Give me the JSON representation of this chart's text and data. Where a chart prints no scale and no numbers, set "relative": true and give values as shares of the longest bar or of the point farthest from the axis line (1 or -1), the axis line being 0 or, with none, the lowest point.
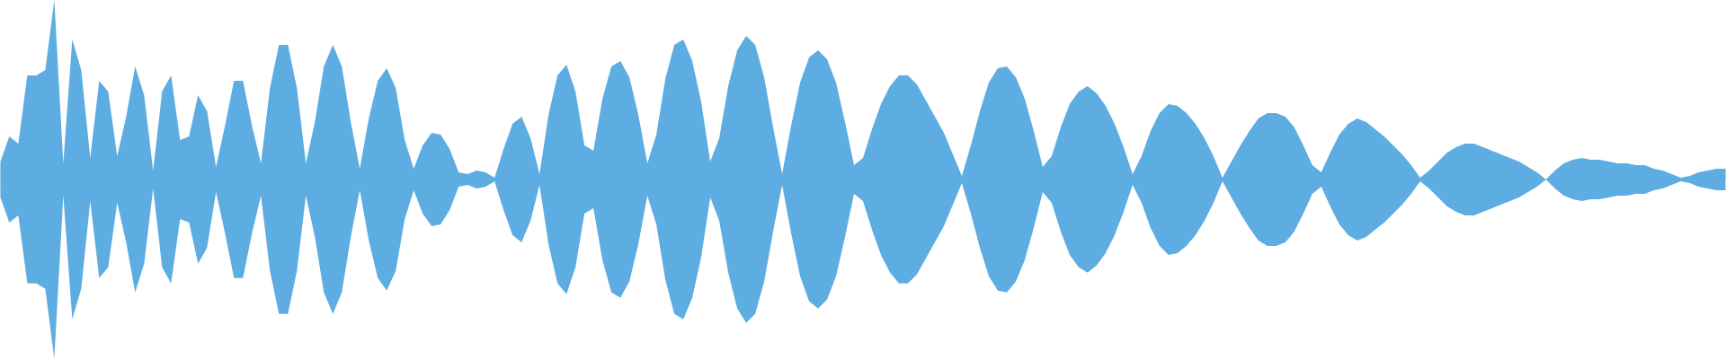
{
  "chart_data": {
    "type": "area",
    "relative": true,
    "ref_lines": [
      {
        "axis": "y",
        "value": 0,
        "color": "#5dade2"
      }
    ],
    "categories": [
      null,
      null,
      null,
      null,
      null,
      null,
      null,
      null,
      null,
      null,
      null,
      null,
      null,
      null,
      null,
      null,
      null,
      null,
      null,
      null,
      null,
      null,
      null,
      null,
      null,
      null,
      null,
      null,
      null,
      null,
      null,
      null,
      null,
      null,
      null,
      null,
      null,
      null,
      null,
      null,
      null,
      null,
      null,
      null,
      null,
      null,
      null,
      null,
      null,
      null,
      null,
      null,
      null,
      null,
      null,
      null,
      null,
      null,
      null,
      null,
      null,
      null,
      null,
      null,
      null,
      null,
      null,
      null,
      null,
      null,
      null,
      null,
      null,
      null,
      null,
      null,
      null,
      null,
      null,
      null,
      null,
      null,
      null,
      null,
      null,
      null,
      null,
      null,
      null,
      null,
      null,
      null,
      null,
      null,
      null,
      null,
      null,
      null,
      null,
      null,
      null,
      null,
      null,
      null,
      null,
      null,
      null,
      null,
      null,
      null,
      null,
      null,
      null,
      null,
      null,
      null,
      null,
      null,
      null,
      null,
      null,
      null,
      null,
      null,
      null,
      null,
      null,
      null,
      null,
      null,
      null,
      null,
      null,
      null,
      null,
      null,
      null,
      null,
      null,
      null,
      null,
      null,
      null,
      null,
      null,
      null,
      null,
      null,
      null,
      null,
      null,
      null,
      null,
      null,
      null,
      null,
      null,
      null,
      null,
      null,
      null,
      null,
      null,
      null,
      null,
      null,
      null,
      null,
      null,
      null,
      null,
      null,
      null,
      null,
      null,
      null,
      null,
      null,
      null,
      null,
      null,
      null,
      null,
      null,
      null,
      null,
      null,
      null,
      null,
      null,
      null,
      null,
      null
    ],
    "series": [
      {
        "color": "#5dade2",
        "values": [
          0.1,
          0.24,
          0.2,
          0.58,
          0.58,
          0.61,
          1.0,
          0.09,
          0.78,
          0.61,
          0.12,
          0.55,
          0.49,
          0.13,
          0.35,
          0.63,
          0.47,
          0.05,
          0.49,
          0.58,
          0.22,
          0.24,
          0.47,
          0.38,
          0.07,
          0.3,
          0.55,
          0.55,
          0.3,
          0.09,
          0.51,
          0.75,
          0.75,
          0.51,
          0.09,
          0.32,
          0.63,
          0.75,
          0.63,
          0.32,
          0.06,
          0.34,
          0.55,
          0.62,
          0.51,
          0.22,
          0.06,
          0.19,
          0.26,
          0.25,
          0.17,
          0.04,
          0.03,
          0.05,
          0.04,
          0.01,
          0.17,
          0.31,
          0.35,
          0.23,
          0.03,
          0.36,
          0.58,
          0.64,
          0.49,
          0.19,
          0.16,
          0.45,
          0.63,
          0.66,
          0.57,
          0.36,
          0.09,
          0.25,
          0.56,
          0.75,
          0.78,
          0.66,
          0.43,
          0.1,
          0.23,
          0.52,
          0.72,
          0.8,
          0.75,
          0.57,
          0.29,
          0.03,
          0.3,
          0.54,
          0.68,
          0.72,
          0.67,
          0.54,
          0.32,
          0.08,
          0.12,
          0.28,
          0.42,
          0.52,
          0.58,
          0.58,
          0.53,
          0.44,
          0.35,
          0.26,
          0.14,
          0.02,
          0.19,
          0.38,
          0.54,
          0.62,
          0.63,
          0.57,
          0.45,
          0.27,
          0.07,
          0.13,
          0.29,
          0.42,
          0.49,
          0.52,
          0.48,
          0.41,
          0.31,
          0.18,
          0.03,
          0.13,
          0.27,
          0.37,
          0.42,
          0.41,
          0.37,
          0.31,
          0.23,
          0.13,
          0.01,
          0.1,
          0.19,
          0.27,
          0.34,
          0.37,
          0.37,
          0.35,
          0.29,
          0.19,
          0.08,
          0.04,
          0.15,
          0.25,
          0.31,
          0.34,
          0.32,
          0.28,
          0.24,
          0.19,
          0.14,
          0.08,
          0.01,
          0.05,
          0.1,
          0.15,
          0.18,
          0.2,
          0.2,
          0.18,
          0.16,
          0.14,
          0.12,
          0.1,
          0.07,
          0.04,
          0.0,
          0.05,
          0.09,
          0.11,
          0.12,
          0.11,
          0.11,
          0.1,
          0.09,
          0.09,
          0.08,
          0.08,
          0.06,
          0.05,
          0.03,
          0.01,
          0.02,
          0.04,
          0.05,
          0.06,
          0.06
        ]
      },
      {
        "color": "#5dade2",
        "values": [
          -0.1,
          -0.24,
          -0.2,
          -0.58,
          -0.58,
          -0.61,
          -1.0,
          -0.09,
          -0.78,
          -0.61,
          -0.12,
          -0.55,
          -0.49,
          -0.13,
          -0.35,
          -0.63,
          -0.47,
          -0.05,
          -0.49,
          -0.58,
          -0.22,
          -0.24,
          -0.47,
          -0.38,
          -0.07,
          -0.3,
          -0.55,
          -0.55,
          -0.3,
          -0.09,
          -0.51,
          -0.75,
          -0.75,
          -0.51,
          -0.09,
          -0.32,
          -0.63,
          -0.75,
          -0.63,
          -0.32,
          -0.06,
          -0.34,
          -0.55,
          -0.62,
          -0.51,
          -0.22,
          -0.06,
          -0.19,
          -0.26,
          -0.25,
          -0.17,
          -0.04,
          -0.03,
          -0.05,
          -0.04,
          -0.01,
          -0.17,
          -0.31,
          -0.35,
          -0.23,
          -0.03,
          -0.36,
          -0.58,
          -0.64,
          -0.49,
          -0.19,
          -0.16,
          -0.45,
          -0.63,
          -0.66,
          -0.57,
          -0.36,
          -0.09,
          -0.25,
          -0.56,
          -0.75,
          -0.78,
          -0.66,
          -0.43,
          -0.1,
          -0.23,
          -0.52,
          -0.72,
          -0.8,
          -0.75,
          -0.57,
          -0.29,
          -0.03,
          -0.3,
          -0.54,
          -0.68,
          -0.72,
          -0.67,
          -0.54,
          -0.32,
          -0.08,
          -0.12,
          -0.28,
          -0.42,
          -0.52,
          -0.58,
          -0.58,
          -0.53,
          -0.44,
          -0.35,
          -0.26,
          -0.14,
          -0.02,
          -0.19,
          -0.38,
          -0.54,
          -0.62,
          -0.63,
          -0.57,
          -0.45,
          -0.27,
          -0.07,
          -0.13,
          -0.29,
          -0.42,
          -0.49,
          -0.52,
          -0.48,
          -0.41,
          -0.31,
          -0.18,
          -0.03,
          -0.13,
          -0.27,
          -0.37,
          -0.42,
          -0.41,
          -0.37,
          -0.31,
          -0.23,
          -0.13,
          -0.01,
          -0.1,
          -0.19,
          -0.27,
          -0.34,
          -0.37,
          -0.37,
          -0.35,
          -0.29,
          -0.19,
          -0.08,
          -0.04,
          -0.15,
          -0.25,
          -0.31,
          -0.34,
          -0.32,
          -0.28,
          -0.24,
          -0.19,
          -0.14,
          -0.08,
          -0.01,
          -0.05,
          -0.1,
          -0.15,
          -0.18,
          -0.2,
          -0.2,
          -0.18,
          -0.16,
          -0.14,
          -0.12,
          -0.1,
          -0.07,
          -0.04,
          0.0,
          -0.05,
          -0.09,
          -0.11,
          -0.12,
          -0.11,
          -0.11,
          -0.1,
          -0.09,
          -0.09,
          -0.08,
          -0.08,
          -0.06,
          -0.05,
          -0.03,
          -0.01,
          -0.02,
          -0.04,
          -0.05,
          -0.06,
          -0.06
        ]
      }
    ]
  }
}
